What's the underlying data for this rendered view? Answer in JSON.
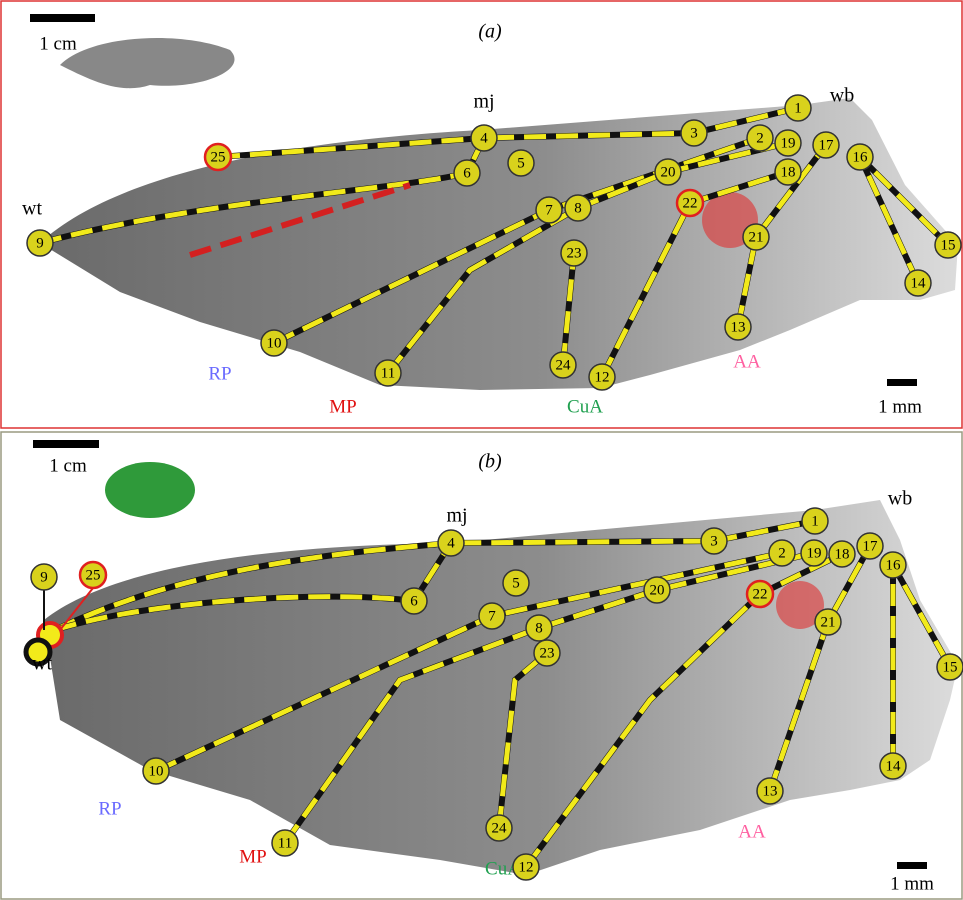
{
  "panels": [
    {
      "label": "(a)",
      "scale_top": "1 cm",
      "scale_bottom": "1 mm",
      "joints": [
        "mj",
        "wb",
        "wt"
      ],
      "regions": [
        "RP",
        "MP",
        "CuA",
        "AA"
      ],
      "landmarks": [
        "1",
        "2",
        "3",
        "4",
        "5",
        "6",
        "7",
        "8",
        "9",
        "10",
        "11",
        "12",
        "13",
        "14",
        "15",
        "16",
        "17",
        "18",
        "19",
        "20",
        "21",
        "22",
        "23",
        "24",
        "25"
      ]
    },
    {
      "label": "(b)",
      "scale_top": "1 cm",
      "scale_bottom": "1 mm",
      "joints": [
        "mj",
        "wb",
        "wt"
      ],
      "regions": [
        "RP",
        "MP",
        "CuA",
        "AA"
      ],
      "landmarks": [
        "1",
        "2",
        "3",
        "4",
        "5",
        "6",
        "7",
        "8",
        "9",
        "10",
        "11",
        "12",
        "13",
        "14",
        "15",
        "16",
        "17",
        "18",
        "19",
        "20",
        "21",
        "22",
        "23",
        "24",
        "25"
      ]
    }
  ]
}
